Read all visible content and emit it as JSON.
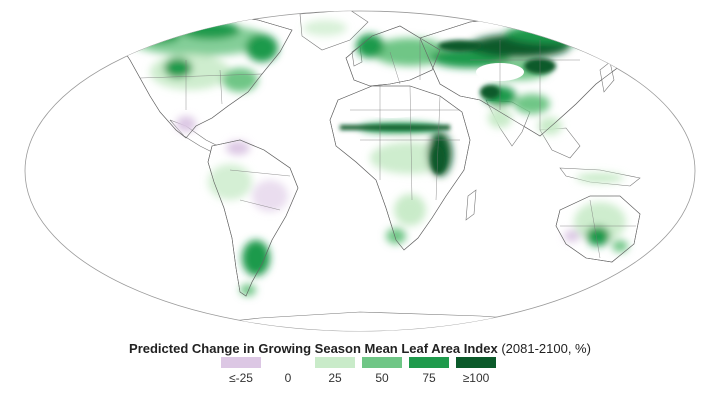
{
  "title": {
    "main": "Predicted Change in Growing Season Mean Leaf Area Index",
    "detail": "(2081-2100, %)"
  },
  "legend": {
    "bins": [
      {
        "color": "#dcc7e4"
      },
      {
        "color": "#ffffff"
      },
      {
        "color": "#c9ebc9"
      },
      {
        "color": "#6fc686"
      },
      {
        "color": "#1f9a4c"
      },
      {
        "color": "#0b5a2a"
      }
    ],
    "labels": [
      "≤-25",
      "0",
      "25",
      "50",
      "75",
      "≥100"
    ]
  },
  "colors": {
    "land": "#ffffff",
    "border": "#777777",
    "outline": "#9a9a9a",
    "strong_green": "#0b5a2a",
    "mid_green": "#1f9a4c",
    "light_green": "#6fc686",
    "pale_green": "#c9ebc9",
    "decline_purple": "#dcc7e4"
  }
}
